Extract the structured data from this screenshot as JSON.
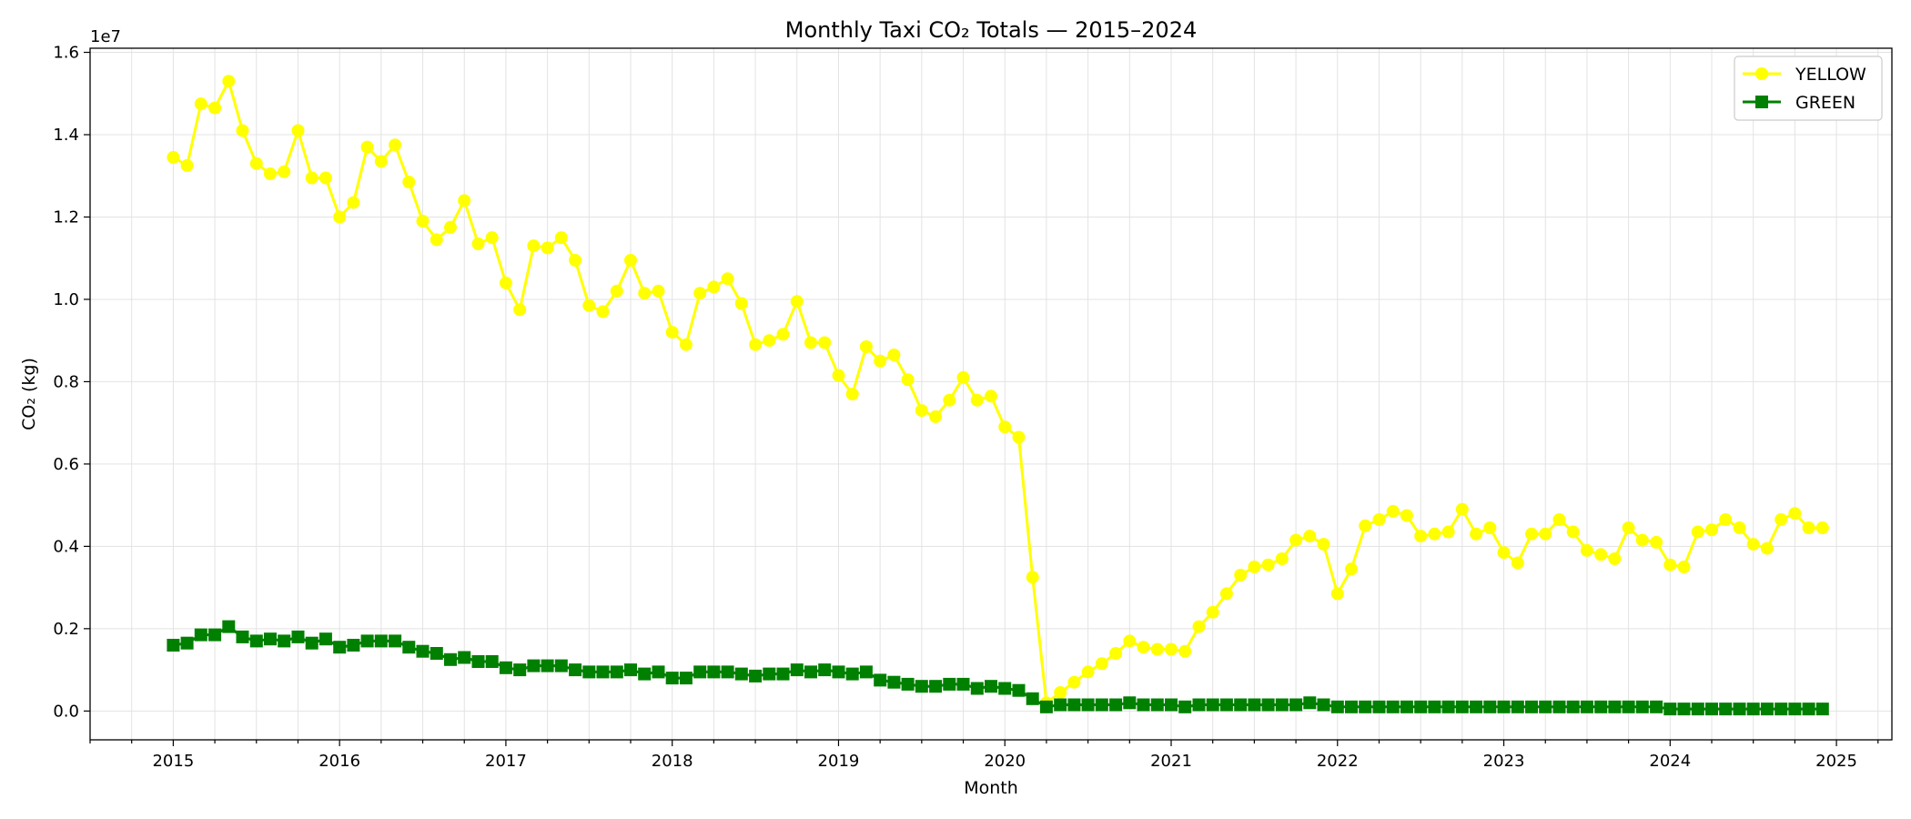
{
  "chart_data": {
    "type": "line",
    "title": "Monthly Taxi CO₂ Totals — 2015–2024",
    "xlabel": "Month",
    "ylabel": "CO₂ (kg)",
    "y_offset_label": "1e7",
    "x_start": "2015-01",
    "x_ticks": [
      "2015",
      "2016",
      "2017",
      "2018",
      "2019",
      "2020",
      "2021",
      "2022",
      "2023",
      "2024",
      "2025"
    ],
    "y_ticks": [
      "0.0",
      "0.2",
      "0.4",
      "0.6",
      "0.8",
      "1.0",
      "1.2",
      "1.4",
      "1.6"
    ],
    "xlim": [
      "2014-07",
      "2025-05"
    ],
    "ylim": [
      -700000,
      16100000
    ],
    "grid": true,
    "legend_position": "top-right",
    "series": [
      {
        "name": "YELLOW",
        "color": "#ffff00",
        "marker": "circle",
        "values": [
          13450000,
          13250000,
          14750000,
          14650000,
          15300000,
          14100000,
          13300000,
          13050000,
          13100000,
          14100000,
          12950000,
          12950000,
          12000000,
          12350000,
          13700000,
          13350000,
          13750000,
          12850000,
          11900000,
          11450000,
          11750000,
          12400000,
          11350000,
          11500000,
          10400000,
          9750000,
          11300000,
          11250000,
          11500000,
          10950000,
          9850000,
          9700000,
          10200000,
          10950000,
          10150000,
          10200000,
          9200000,
          8900000,
          10150000,
          10300000,
          10500000,
          9900000,
          8900000,
          9000000,
          9150000,
          9950000,
          8950000,
          8950000,
          8150000,
          7700000,
          8850000,
          8500000,
          8650000,
          8050000,
          7300000,
          7150000,
          7550000,
          8100000,
          7550000,
          7650000,
          6900000,
          6650000,
          3250000,
          200000,
          450000,
          700000,
          950000,
          1150000,
          1400000,
          1700000,
          1550000,
          1500000,
          1500000,
          1450000,
          2050000,
          2400000,
          2850000,
          3300000,
          3500000,
          3550000,
          3700000,
          4150000,
          4250000,
          4050000,
          2850000,
          3450000,
          4500000,
          4650000,
          4850000,
          4750000,
          4250000,
          4300000,
          4350000,
          4900000,
          4300000,
          4450000,
          3850000,
          3600000,
          4300000,
          4300000,
          4650000,
          4350000,
          3900000,
          3800000,
          3700000,
          4450000,
          4150000,
          4100000,
          3550000,
          3500000,
          4350000,
          4400000,
          4650000,
          4450000,
          4050000,
          3950000,
          4650000,
          4800000,
          4450000,
          4450000
        ]
      },
      {
        "name": "GREEN",
        "color": "#008000",
        "marker": "square",
        "values": [
          1600000,
          1650000,
          1850000,
          1850000,
          2050000,
          1800000,
          1700000,
          1750000,
          1700000,
          1800000,
          1650000,
          1750000,
          1550000,
          1600000,
          1700000,
          1700000,
          1700000,
          1550000,
          1450000,
          1400000,
          1250000,
          1300000,
          1200000,
          1200000,
          1050000,
          1000000,
          1100000,
          1100000,
          1100000,
          1000000,
          950000,
          950000,
          950000,
          1000000,
          900000,
          950000,
          800000,
          800000,
          950000,
          950000,
          950000,
          900000,
          850000,
          900000,
          900000,
          1000000,
          950000,
          1000000,
          950000,
          900000,
          950000,
          750000,
          700000,
          650000,
          600000,
          600000,
          650000,
          650000,
          550000,
          600000,
          550000,
          500000,
          300000,
          100000,
          150000,
          150000,
          150000,
          150000,
          150000,
          200000,
          150000,
          150000,
          150000,
          100000,
          150000,
          150000,
          150000,
          150000,
          150000,
          150000,
          150000,
          150000,
          200000,
          150000,
          100000,
          100000,
          100000,
          100000,
          100000,
          100000,
          100000,
          100000,
          100000,
          100000,
          100000,
          100000,
          100000,
          100000,
          100000,
          100000,
          100000,
          100000,
          100000,
          100000,
          100000,
          100000,
          100000,
          100000,
          50000,
          50000,
          50000,
          50000,
          50000,
          50000,
          50000,
          50000,
          50000,
          50000,
          50000,
          50000
        ]
      }
    ]
  }
}
